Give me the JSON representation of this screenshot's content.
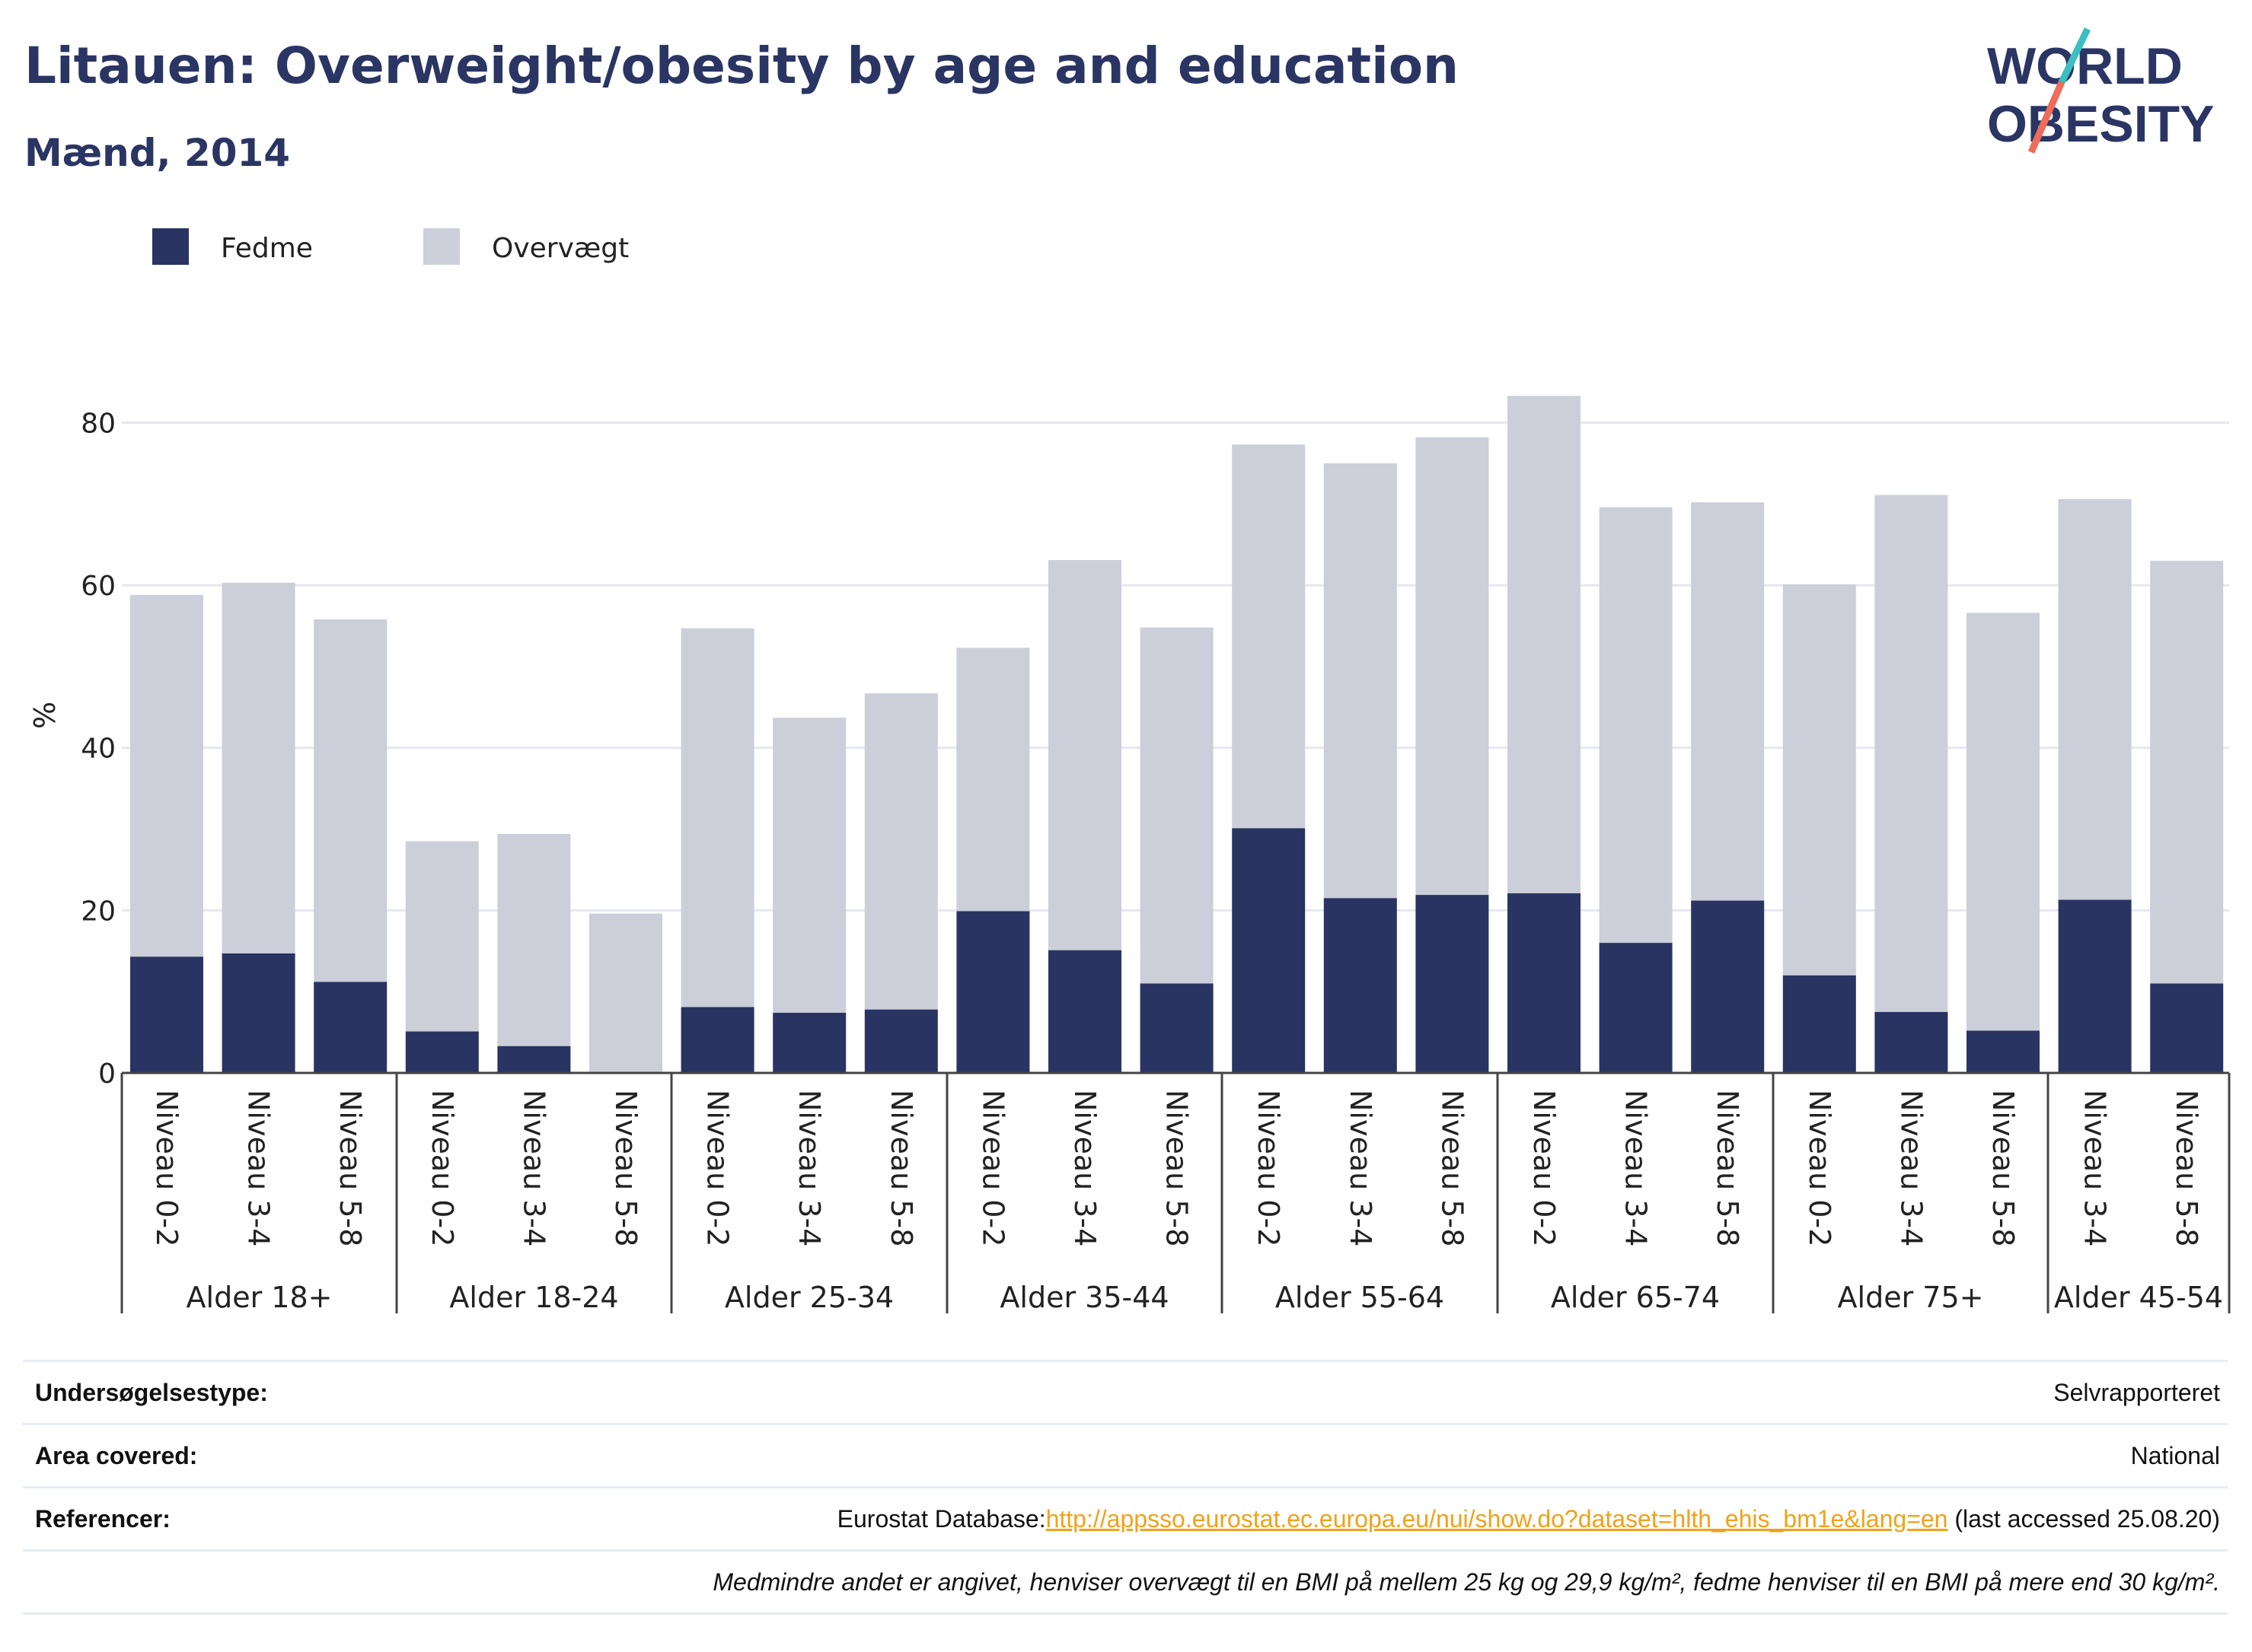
{
  "title": "Litauen: Overweight/obesity by age and education",
  "subtitle": "Mænd, 2014",
  "logo": {
    "line1": "WORLD",
    "line2": "OBESITY"
  },
  "chart_data": {
    "type": "bar",
    "stacked": true,
    "ylabel": "%",
    "ylim": [
      0,
      88
    ],
    "yticks": [
      0,
      20,
      40,
      60,
      80
    ],
    "grid": true,
    "legend_position": "top-left",
    "colors": {
      "Fedme": "#293462",
      "Overvægt": "#ccced9"
    },
    "groups": [
      {
        "label": "Alder 18+",
        "categories": [
          "Niveau 0-2",
          "Niveau 3-4",
          "Niveau 5-8"
        ]
      },
      {
        "label": "Alder 18-24",
        "categories": [
          "Niveau 0-2",
          "Niveau 3-4",
          "Niveau 5-8"
        ]
      },
      {
        "label": "Alder 25-34",
        "categories": [
          "Niveau 0-2",
          "Niveau 3-4",
          "Niveau 5-8"
        ]
      },
      {
        "label": "Alder 35-44",
        "categories": [
          "Niveau 0-2",
          "Niveau 3-4",
          "Niveau 5-8"
        ]
      },
      {
        "label": "Alder 55-64",
        "categories": [
          "Niveau 0-2",
          "Niveau 3-4",
          "Niveau 5-8"
        ]
      },
      {
        "label": "Alder 65-74",
        "categories": [
          "Niveau 0-2",
          "Niveau 3-4",
          "Niveau 5-8"
        ]
      },
      {
        "label": "Alder 75+",
        "categories": [
          "Niveau 0-2",
          "Niveau 3-4",
          "Niveau 5-8"
        ]
      },
      {
        "label": "Alder 45-54",
        "categories": [
          "Niveau 3-4",
          "Niveau 5-8"
        ]
      }
    ],
    "series": [
      {
        "name": "Fedme",
        "values": [
          14.3,
          14.7,
          11.2,
          5.1,
          3.3,
          0,
          8.1,
          7.4,
          7.8,
          19.9,
          15.1,
          11.0,
          30.1,
          21.5,
          21.9,
          22.1,
          16.0,
          21.2,
          12.0,
          7.5,
          5.2,
          21.3,
          11.0
        ]
      },
      {
        "name": "Overvægt",
        "values": [
          44.5,
          45.6,
          44.6,
          23.4,
          26.1,
          19.6,
          46.6,
          36.3,
          38.9,
          32.4,
          48.0,
          43.8,
          47.2,
          53.5,
          56.3,
          61.2,
          53.6,
          49.0,
          48.1,
          63.6,
          51.4,
          49.3,
          52.0
        ]
      }
    ]
  },
  "info": {
    "survey_label": "Undersøgelsestype:",
    "survey_value": "Selvrapporteret",
    "area_label": "Area covered:",
    "area_value": "National",
    "ref_label": "Referencer:",
    "ref_prefix": "Eurostat Database:",
    "ref_link": "http://appsso.eurostat.ec.europa.eu/nui/show.do?dataset=hlth_ehis_bm1e&lang=en",
    "ref_suffix": " (last accessed 25.08.20)",
    "note": "Medmindre andet er angivet, henviser overvægt til en BMI på mellem 25 kg og 29,9 kg/m², fedme henviser til en BMI på mere end 30 kg/m²."
  }
}
